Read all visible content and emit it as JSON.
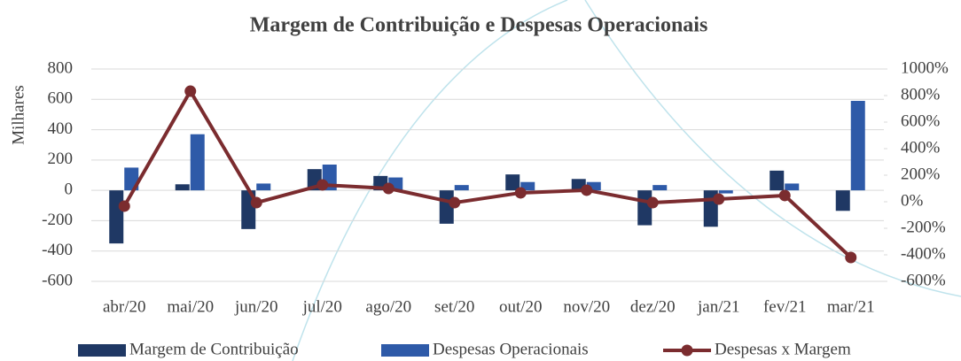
{
  "chart_data": {
    "type": "bar_line",
    "title": "Margem de Contribuição e Despesas Operacionais",
    "y_label": "Milhares",
    "categories": [
      "abr/20",
      "mai/20",
      "jun/20",
      "jul/20",
      "ago/20",
      "set/20",
      "out/20",
      "nov/20",
      "dez/20",
      "jan/21",
      "fev/21",
      "mar/21"
    ],
    "series": [
      {
        "name": "Margem de Contribuição",
        "color": "#1f3864",
        "kind": "bar",
        "values": [
          -350,
          40,
          -255,
          140,
          95,
          -220,
          105,
          75,
          -230,
          -240,
          130,
          -135
        ]
      },
      {
        "name": "Despesas Operacionais",
        "color": "#2e5aa8",
        "kind": "bar",
        "values": [
          150,
          370,
          45,
          170,
          85,
          35,
          55,
          55,
          35,
          -20,
          45,
          590
        ]
      },
      {
        "name": "Despesas x Margem",
        "color": "#7b2c2f",
        "kind": "line",
        "axis": "y2",
        "values": [
          -33,
          833,
          -7,
          127,
          100,
          -7,
          67,
          87,
          -7,
          20,
          47,
          -420
        ]
      }
    ],
    "ylim": [
      -600,
      800
    ],
    "yticks": [
      -600,
      -400,
      -200,
      0,
      200,
      400,
      600,
      800
    ],
    "y2lim": [
      -600,
      1000
    ],
    "y2ticks": [
      {
        "value": -600,
        "label": "-600%"
      },
      {
        "value": -400,
        "label": "-400%"
      },
      {
        "value": -200,
        "label": "-200%"
      },
      {
        "value": 0,
        "label": "0%"
      },
      {
        "value": 200,
        "label": "200%"
      },
      {
        "value": 400,
        "label": "400%"
      },
      {
        "value": 600,
        "label": "600%"
      },
      {
        "value": 800,
        "label": "800%"
      },
      {
        "value": 1000,
        "label": "1000%"
      }
    ],
    "grid": true,
    "legend": "bottom"
  }
}
